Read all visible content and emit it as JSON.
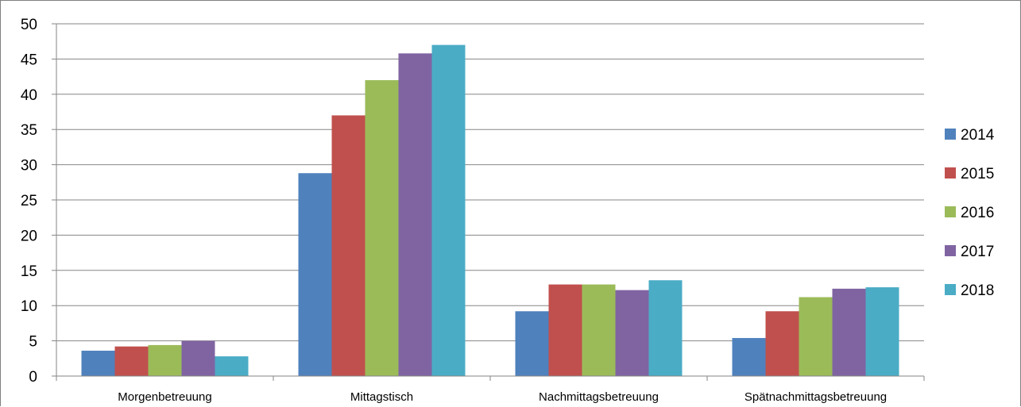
{
  "chart_data": {
    "type": "bar",
    "title": "",
    "xlabel": "",
    "ylabel": "",
    "categories": [
      "Morgenbetreuung",
      "Mittagstisch",
      "Nachmittagsbetreuung",
      "Spätnachmittagsbetreuung"
    ],
    "series": [
      {
        "name": "2014",
        "color": "#4f81bd",
        "values": [
          3.6,
          28.8,
          9.2,
          5.4
        ]
      },
      {
        "name": "2015",
        "color": "#c0504d",
        "values": [
          4.2,
          37.0,
          13.0,
          9.2
        ]
      },
      {
        "name": "2016",
        "color": "#9bbb59",
        "values": [
          4.4,
          42.0,
          13.0,
          11.2
        ]
      },
      {
        "name": "2017",
        "color": "#8064a2",
        "values": [
          5.0,
          45.8,
          12.2,
          12.4
        ]
      },
      {
        "name": "2018",
        "color": "#4bacc6",
        "values": [
          2.8,
          47.0,
          13.6,
          12.6
        ]
      }
    ],
    "ylim": [
      0,
      50
    ],
    "yticks": [
      "0",
      "5",
      "10",
      "15",
      "20",
      "25",
      "30",
      "35",
      "40",
      "45",
      "50"
    ],
    "grid": true,
    "legend_position": "right"
  }
}
